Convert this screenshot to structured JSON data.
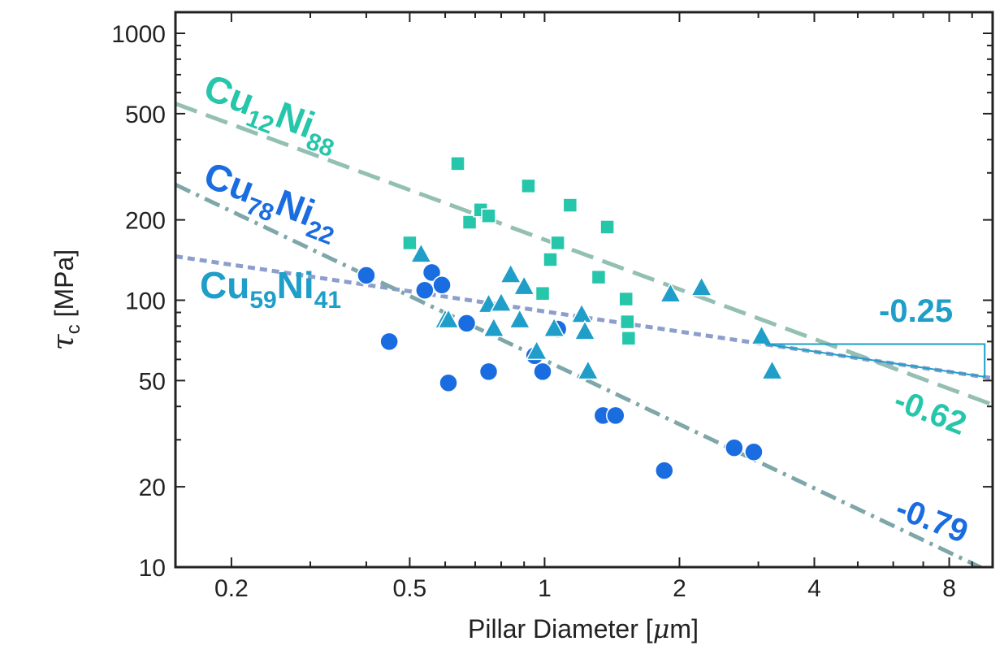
{
  "chart_data": {
    "type": "scatter",
    "xscale": "log",
    "yscale": "log",
    "xlim": [
      0.15,
      10
    ],
    "ylim": [
      10,
      1200
    ],
    "xlabel_text": "Pillar Diameter [",
    "xlabel_mu": "μ",
    "xlabel_end": "m]",
    "ylabel_sym": "τ",
    "ylabel_sub": "c",
    "ylabel_unit": " [MPa]",
    "xticks": [
      {
        "value": 0.2,
        "label": "0.2"
      },
      {
        "value": 0.5,
        "label": "0.5"
      },
      {
        "value": 1,
        "label": "1"
      },
      {
        "value": 2,
        "label": "2"
      },
      {
        "value": 4,
        "label": "4"
      },
      {
        "value": 8,
        "label": "8"
      }
    ],
    "yticks": [
      {
        "value": 10,
        "label": "10"
      },
      {
        "value": 20,
        "label": "20"
      },
      {
        "value": 50,
        "label": "50"
      },
      {
        "value": 100,
        "label": "100"
      },
      {
        "value": 200,
        "label": "200"
      },
      {
        "value": 500,
        "label": "500"
      },
      {
        "value": 1000,
        "label": "1000"
      }
    ],
    "grid": false,
    "series": [
      {
        "label_main": "Cu",
        "label_sub1": "12",
        "label_mid": "Ni",
        "label_sub2": "88",
        "marker": "square",
        "color": "#26c6aa",
        "x": [
          0.5,
          0.64,
          0.68,
          0.72,
          0.75,
          0.92,
          0.99,
          1.03,
          1.07,
          1.14,
          1.32,
          1.38,
          1.52,
          1.53,
          1.54
        ],
        "y": [
          164,
          325,
          196,
          218,
          207,
          268,
          106,
          142,
          164,
          227,
          122,
          188,
          101,
          83,
          72
        ],
        "fit": {
          "slope": -0.62,
          "slope_label": "-0.62",
          "color": "#94bfb3",
          "dash": "28,12",
          "x": [
            0.15,
            10
          ],
          "y": [
            545,
            40.6
          ]
        }
      },
      {
        "label_main": "Cu",
        "label_sub1": "78",
        "label_mid": "Ni",
        "label_sub2": "22",
        "marker": "circle",
        "color": "#1a6de0",
        "x": [
          0.4,
          0.45,
          0.54,
          0.56,
          0.59,
          0.61,
          0.67,
          0.75,
          0.95,
          0.99,
          1.07,
          1.35,
          1.44,
          1.85,
          2.65,
          2.93
        ],
        "y": [
          124,
          70,
          109,
          127,
          114,
          49,
          82,
          54,
          62,
          54,
          78,
          37,
          37,
          23,
          28,
          27
        ],
        "fit": {
          "slope": -0.79,
          "slope_label": "-0.79",
          "color": "#7fa6a8",
          "dash": "20,8,4,8",
          "x": [
            0.15,
            10
          ],
          "y": [
            271,
            9.5
          ]
        }
      },
      {
        "label_main": "Cu",
        "label_sub1": "59",
        "label_mid": "Ni",
        "label_sub2": "41",
        "marker": "triangle",
        "color": "#1e9ec8",
        "x": [
          0.53,
          0.6,
          0.61,
          0.75,
          0.77,
          0.8,
          0.84,
          0.88,
          0.9,
          0.96,
          1.05,
          1.21,
          1.23,
          1.25,
          1.91,
          2.24,
          3.05,
          3.22
        ],
        "y": [
          148,
          84,
          84,
          96,
          78,
          97,
          124,
          84,
          112,
          64,
          78,
          88,
          76,
          54,
          105,
          111,
          73,
          54
        ],
        "fit": {
          "slope": -0.25,
          "slope_label": "-0.25",
          "color": "#8c9fcc",
          "dash": "9,6",
          "x": [
            0.15,
            10
          ],
          "y": [
            146,
            51
          ]
        }
      }
    ]
  }
}
